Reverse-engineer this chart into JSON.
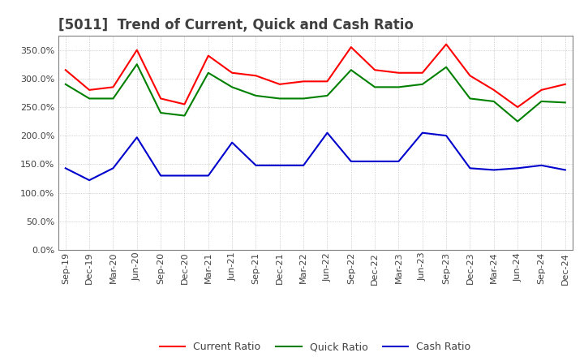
{
  "title": "[5011]  Trend of Current, Quick and Cash Ratio",
  "title_color": "#404040",
  "background_color": "#ffffff",
  "plot_background": "#ffffff",
  "grid_color": "#b0b0b0",
  "grid_style": "dotted",
  "x_labels": [
    "Sep-19",
    "Dec-19",
    "Mar-20",
    "Jun-20",
    "Sep-20",
    "Dec-20",
    "Mar-21",
    "Jun-21",
    "Sep-21",
    "Dec-21",
    "Mar-22",
    "Jun-22",
    "Sep-22",
    "Dec-22",
    "Mar-23",
    "Jun-23",
    "Sep-23",
    "Dec-23",
    "Mar-24",
    "Jun-24",
    "Sep-24",
    "Dec-24"
  ],
  "current_ratio": [
    315,
    280,
    285,
    350,
    265,
    255,
    340,
    310,
    305,
    290,
    295,
    295,
    355,
    315,
    310,
    310,
    360,
    305,
    280,
    250,
    280,
    290
  ],
  "quick_ratio": [
    290,
    265,
    265,
    325,
    240,
    235,
    310,
    285,
    270,
    265,
    265,
    270,
    315,
    285,
    285,
    290,
    320,
    265,
    260,
    225,
    260,
    258
  ],
  "cash_ratio": [
    143,
    122,
    143,
    197,
    130,
    130,
    130,
    188,
    148,
    148,
    148,
    205,
    155,
    155,
    155,
    205,
    200,
    143,
    140,
    143,
    148,
    140
  ],
  "current_color": "#ff0000",
  "quick_color": "#008000",
  "cash_color": "#0000cc",
  "line_width": 1.5,
  "ylim": [
    0,
    375
  ],
  "ytick_values": [
    0,
    50,
    100,
    150,
    200,
    250,
    300,
    350
  ],
  "legend_labels": [
    "Current Ratio",
    "Quick Ratio",
    "Cash Ratio"
  ],
  "title_fontsize": 12,
  "tick_fontsize": 8,
  "legend_fontsize": 9
}
